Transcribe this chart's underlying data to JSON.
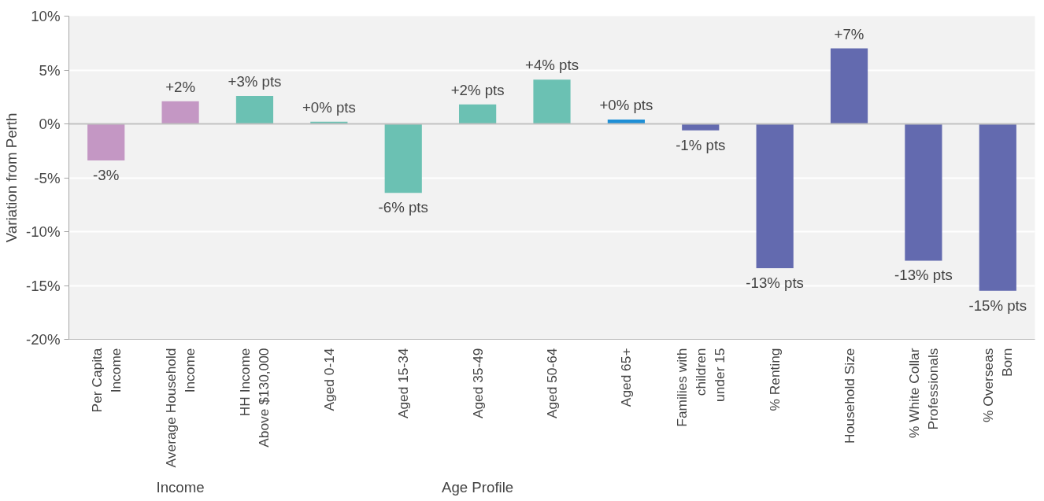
{
  "chart_data": {
    "type": "bar",
    "ylabel": "Variation from Perth",
    "categories": [
      "Per Capita\nIncome",
      "Average Household\nIncome",
      "HH Income\nAbove $130,000",
      "Aged 0-14",
      "Aged 15-34",
      "Aged 35-49",
      "Aged 50-64",
      "Aged 65+",
      "Families with\nchildren\nunder 15",
      "% Renting",
      "Household Size",
      "% White Collar\nProfessionals",
      "% Overseas\nBorn"
    ],
    "values": [
      -3.4,
      2.1,
      2.6,
      0.2,
      -6.4,
      1.8,
      4.1,
      0.4,
      -0.6,
      -13.4,
      7.0,
      -12.7,
      -15.5
    ],
    "colors": [
      "#c497c4",
      "#c497c4",
      "#6bc1b3",
      "#6bc1b3",
      "#6bc1b3",
      "#6bc1b3",
      "#6bc1b3",
      "#1e8fd6",
      "#636aaf",
      "#636aaf",
      "#636aaf",
      "#636aaf",
      "#636aaf"
    ],
    "value_labels": [
      "-3%",
      "+2%",
      "+3% pts",
      "+0% pts",
      "-6% pts",
      "+2% pts",
      "+4% pts",
      "+0% pts",
      "-1% pts",
      "-13% pts",
      "+7%",
      "-13% pts",
      "-15% pts"
    ],
    "ylim": [
      -20,
      10
    ],
    "yticks": [
      {
        "value": -20,
        "label": "-20%"
      },
      {
        "value": -15,
        "label": "-15%"
      },
      {
        "value": -10,
        "label": "-10%"
      },
      {
        "value": -5,
        "label": "-5%"
      },
      {
        "value": 0,
        "label": "0%"
      },
      {
        "value": 5,
        "label": "5%"
      },
      {
        "value": 10,
        "label": "10%"
      }
    ],
    "grid": "y",
    "annotations": [
      "Income",
      "Age Profile"
    ]
  }
}
